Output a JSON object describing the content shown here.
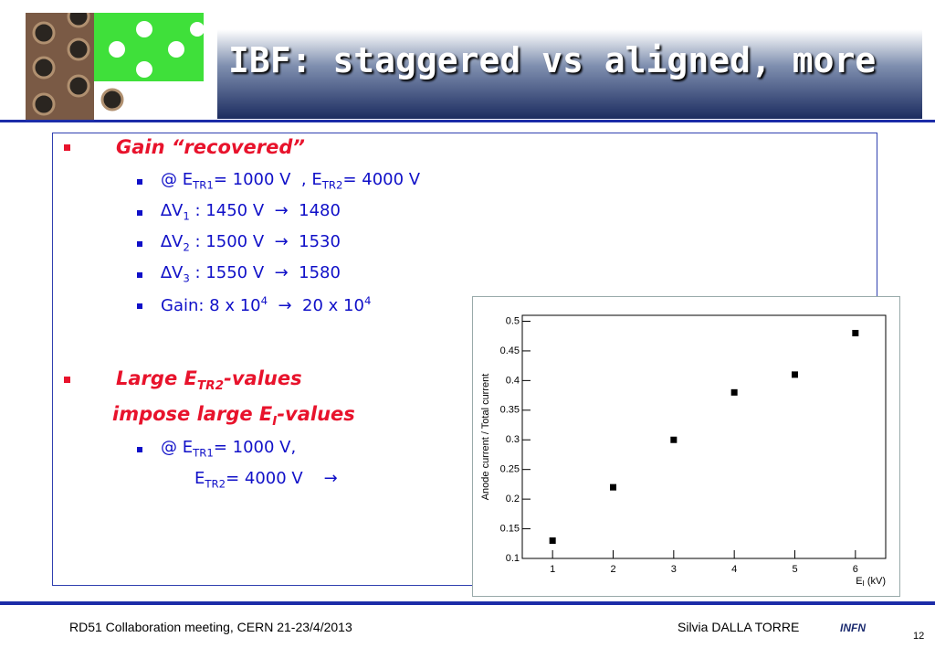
{
  "title": "IBF: staggered vs aligned, more",
  "bullet1": "Gain “recovered”",
  "bullet1_items": [
    [
      "@ E",
      "TR1",
      "= 1000 V  , E",
      "TR2",
      "= 4000 V"
    ],
    [
      "∆V",
      "1",
      " : 1450 V  →  1480"
    ],
    [
      "∆V",
      "2",
      " : 1500 V  →  1530"
    ],
    [
      "∆V",
      "3",
      " : 1550 V  →  1580"
    ],
    [
      "Gain: 8 x 10",
      "4",
      "  →  20 x 10",
      "4"
    ]
  ],
  "bullet2": [
    [
      "Large E",
      "TR2",
      "-values"
    ],
    [
      "impose large E",
      "I",
      "-values"
    ]
  ],
  "bullet2_items": [
    [
      "@ E",
      "TR1",
      "= 1000 V,"
    ],
    [
      "E",
      "TR2",
      "= 4000 V    →"
    ]
  ],
  "footer": {
    "meeting": "RD51 Collaboration meeting, CERN 21-23/4/2013",
    "author": "Silvia DALLA TORRE",
    "page": "12",
    "logo": "INFN"
  },
  "chart_data": {
    "type": "scatter",
    "x": [
      1,
      2,
      3,
      4,
      5,
      6
    ],
    "values": [
      0.13,
      0.22,
      0.3,
      0.38,
      0.41,
      0.48
    ],
    "color": "#000000",
    "xlabel": [
      "E",
      "I",
      " (kV)"
    ],
    "ylabel": "Anode current / Total current",
    "xlim": [
      0.5,
      6.5
    ],
    "ylim": [
      0.1,
      0.51
    ],
    "xticks": [
      1,
      2,
      3,
      4,
      5,
      6
    ],
    "yticks": [
      0.1,
      0.15,
      0.2,
      0.25,
      0.3,
      0.35,
      0.4,
      0.45,
      0.5
    ]
  }
}
